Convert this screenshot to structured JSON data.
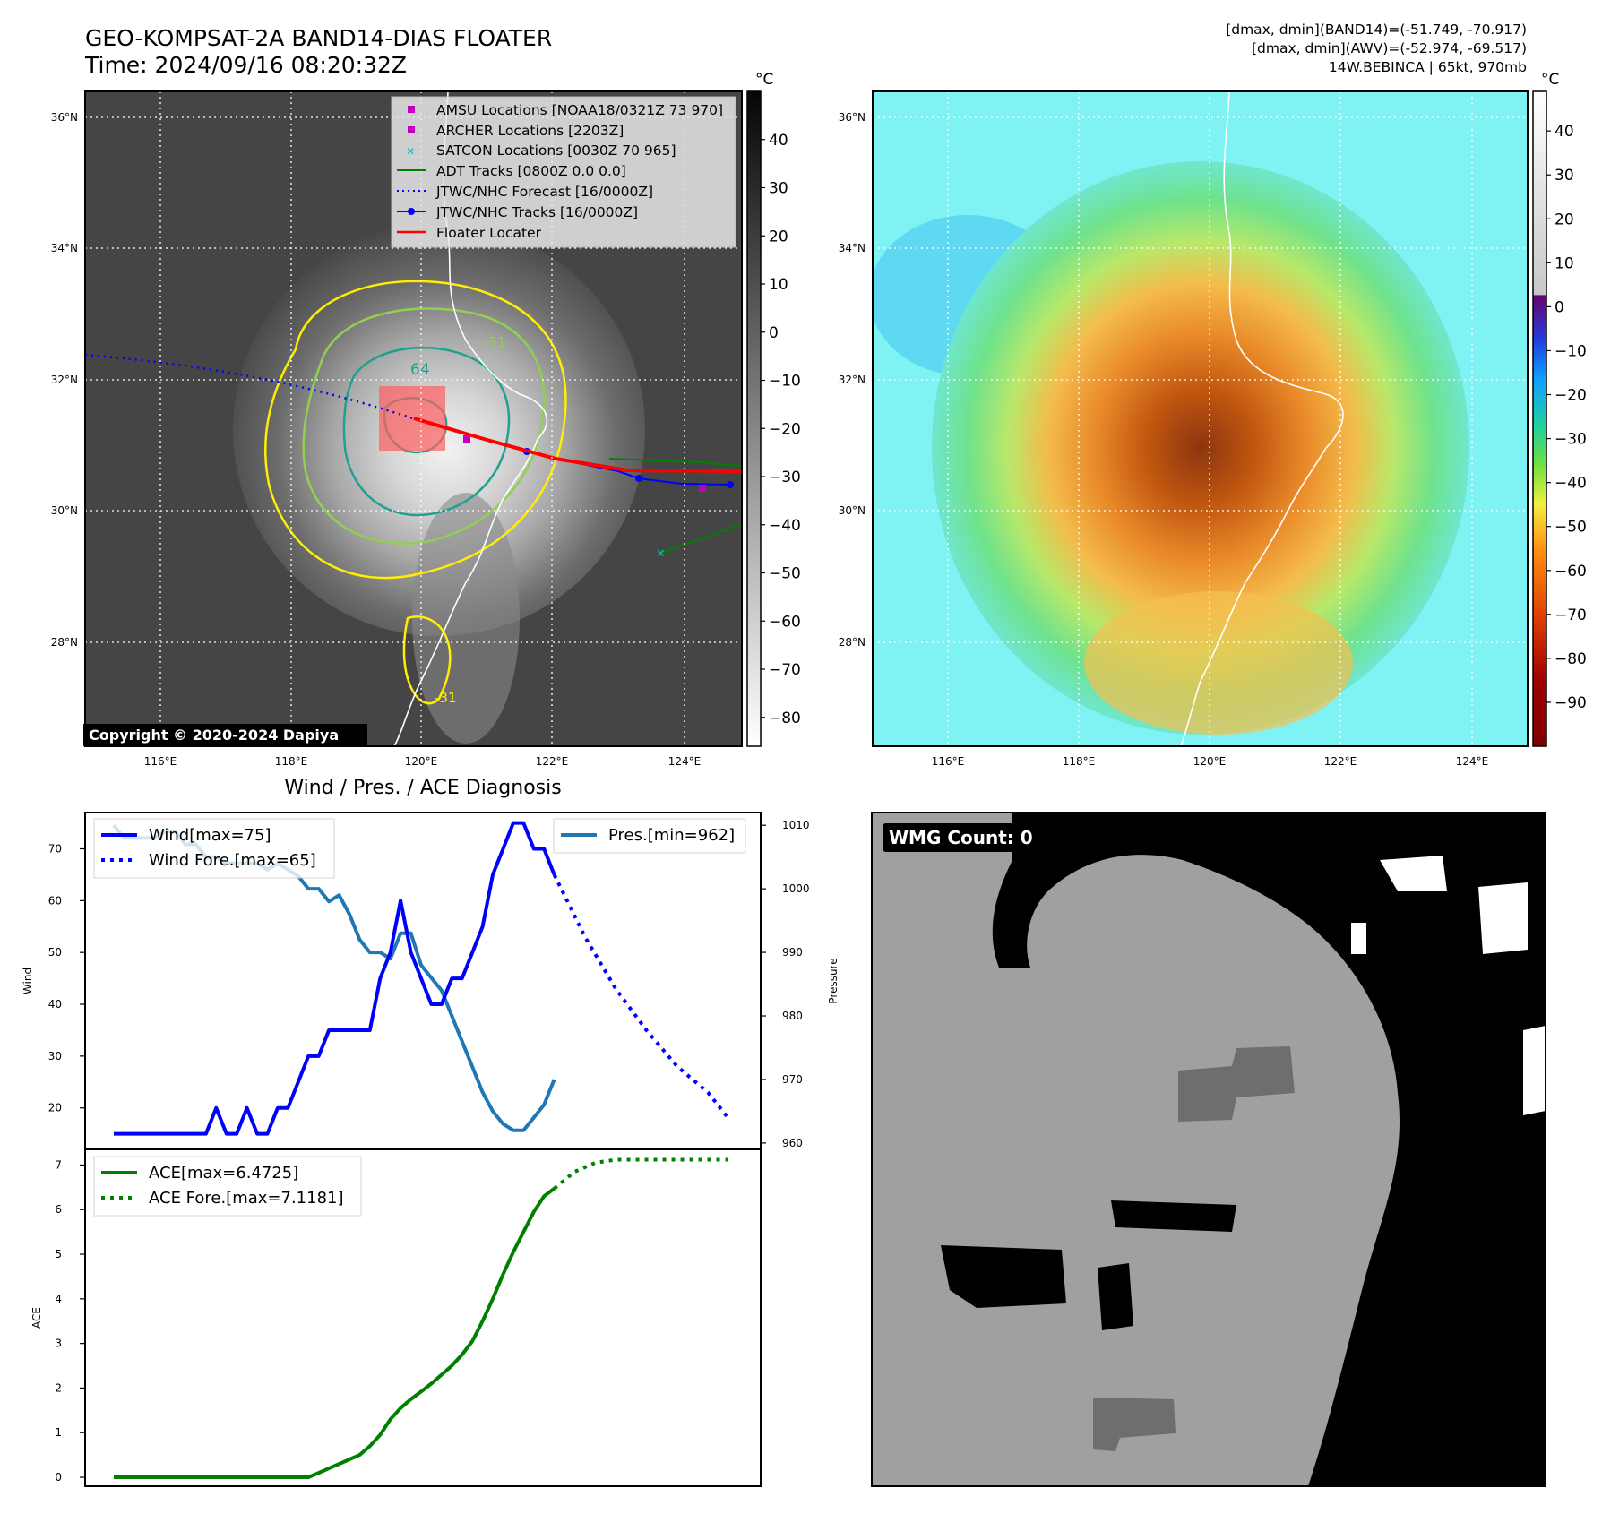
{
  "figure": {
    "title_line1": "GEO-KOMPSAT-2A BAND14-DIAS FLOATER",
    "title_line2": "Time: 2024/09/16 08:20:32Z",
    "info_line1": "[dmax, dmin](BAND14)=(-51.749, -70.917)",
    "info_line2": "[dmax, dmin](AWV)=(-52.974, -69.517)",
    "info_line3": "14W.BEBINCA | 65kt, 970mb",
    "copyright": "Copyright © 2020-2024 Dapiya",
    "unit": "°C"
  },
  "map": {
    "lon_ticks": [
      "116°E",
      "118°E",
      "120°E",
      "122°E",
      "124°E"
    ],
    "lat_ticks": [
      "36°N",
      "34°N",
      "32°N",
      "30°N",
      "28°N"
    ],
    "contour_labels": [
      "-31",
      "64",
      "-31"
    ],
    "legend": [
      {
        "label": "AMSU Locations [NOAA18/0321Z 73 970]",
        "color": "#c000c0",
        "kind": "square"
      },
      {
        "label": "ARCHER Locations [2203Z]",
        "color": "#c000c0",
        "kind": "square"
      },
      {
        "label": "SATCON Locations [0030Z 70 965]",
        "color": "#00c0c0",
        "kind": "cross"
      },
      {
        "label": "ADT Tracks [0800Z 0.0 0.0]",
        "color": "#008000",
        "kind": "line"
      },
      {
        "label": "JTWC/NHC Forecast [16/0000Z]",
        "color": "#0000ff",
        "kind": "dotted"
      },
      {
        "label": "JTWC/NHC Tracks [16/0000Z]",
        "color": "#0000ff",
        "kind": "line-dot"
      },
      {
        "label": "Floater Locater",
        "color": "#ff0000",
        "kind": "line"
      }
    ]
  },
  "colorbar_gray": {
    "ticks": [
      "40",
      "30",
      "20",
      "10",
      "0",
      "−10",
      "−20",
      "−30",
      "−40",
      "−50",
      "−60",
      "−70",
      "−80"
    ]
  },
  "colorbar_color": {
    "ticks": [
      "40",
      "30",
      "20",
      "10",
      "0",
      "−10",
      "−20",
      "−30",
      "−40",
      "−50",
      "−60",
      "−70",
      "−80",
      "−90"
    ]
  },
  "wmg": {
    "label": "WMG Count: 0"
  },
  "colors": {
    "wind": "#0000ff",
    "pressure": "#1f77b4",
    "ace": "#008000",
    "contour_yellow": "#ffee00",
    "contour_green": "#90d050",
    "contour_teal": "#20a090",
    "floater": "#ff0000"
  },
  "chart_data": [
    {
      "type": "line",
      "title": "Wind / Pres. / ACE Diagnosis",
      "ylabel": "Wind",
      "ylabel_right": "Pressure",
      "ylim": [
        12,
        77
      ],
      "ylim_right": [
        959,
        1012
      ],
      "yticks": [
        "70",
        "60",
        "50",
        "40",
        "30",
        "20"
      ],
      "yticks_right": [
        "1010",
        "1000",
        "990",
        "980",
        "970",
        "960"
      ],
      "x_index_max": 60,
      "series": [
        {
          "name": "Wind[max=75]",
          "x": [
            0,
            1,
            2,
            3,
            4,
            5,
            6,
            7,
            8,
            9,
            10,
            11,
            12,
            13,
            14,
            15,
            16,
            17,
            18,
            19,
            20,
            21,
            22,
            23,
            24,
            25,
            26,
            27,
            28,
            29,
            30,
            31,
            32,
            33,
            34,
            35,
            36,
            37,
            38,
            39,
            40,
            41,
            42,
            43,
            44,
            45,
            46,
            47,
            48,
            49,
            50,
            51,
            52,
            53,
            54,
            55,
            56,
            57,
            58,
            59,
            60
          ],
          "values": [
            15,
            15,
            15,
            15,
            15,
            15,
            15,
            15,
            15,
            15,
            20,
            15,
            15,
            20,
            15,
            15,
            20,
            20,
            25,
            30,
            30,
            35,
            35,
            35,
            35,
            35,
            45,
            50,
            60,
            50,
            45,
            40,
            40,
            45,
            45,
            50,
            55,
            65,
            70,
            75,
            75,
            70,
            70,
            65,
            null,
            null,
            null,
            null,
            null,
            null,
            null,
            null,
            null,
            null,
            null,
            null,
            null,
            null,
            null,
            null,
            null
          ]
        },
        {
          "name": "Wind Fore.[max=65]",
          "x": [
            43,
            46,
            49,
            52,
            55,
            58,
            60
          ],
          "values": [
            65,
            53,
            43,
            35,
            28,
            23,
            18
          ]
        },
        {
          "name": "Pres.[min=962]",
          "axis": "right",
          "x": [
            0,
            1,
            2,
            3,
            4,
            5,
            6,
            7,
            8,
            9,
            10,
            11,
            12,
            13,
            14,
            15,
            16,
            17,
            18,
            19,
            20,
            21,
            22,
            23,
            24,
            25,
            26,
            27,
            28,
            29,
            30,
            31,
            32,
            33,
            34,
            35,
            36,
            37,
            38,
            39,
            40,
            41,
            42,
            43
          ],
          "values": [
            1010,
            1008,
            1008,
            1008,
            1008,
            1009,
            1009,
            1007,
            1007,
            1005,
            1005,
            1004,
            1004,
            1004,
            1004,
            1003,
            1004,
            1003,
            1002,
            1000,
            1000,
            998,
            999,
            996,
            992,
            990,
            990,
            989,
            993,
            993,
            988,
            986,
            984,
            980,
            976,
            972,
            968,
            965,
            963,
            962,
            962,
            964,
            966,
            970
          ]
        }
      ]
    },
    {
      "type": "line",
      "ylabel": "ACE",
      "ylim": [
        -0.2,
        7.35
      ],
      "yticks": [
        "7",
        "6",
        "5",
        "4",
        "3",
        "2",
        "1",
        "0"
      ],
      "x_index_max": 60,
      "series": [
        {
          "name": "ACE[max=6.4725]",
          "x": [
            0,
            19,
            20,
            21,
            22,
            23,
            24,
            25,
            26,
            27,
            28,
            29,
            30,
            31,
            32,
            33,
            34,
            35,
            36,
            37,
            38,
            39,
            40,
            41,
            42,
            43
          ],
          "values": [
            0,
            0,
            0.1,
            0.2,
            0.3,
            0.4,
            0.5,
            0.7,
            0.95,
            1.3,
            1.55,
            1.75,
            1.92,
            2.1,
            2.3,
            2.5,
            2.75,
            3.05,
            3.5,
            4.0,
            4.55,
            5.05,
            5.5,
            5.95,
            6.3,
            6.4725
          ]
        },
        {
          "name": "ACE Fore.[max=7.1181]",
          "x": [
            43,
            45,
            47,
            49,
            51,
            53,
            55,
            58,
            60
          ],
          "values": [
            6.4725,
            6.85,
            7.05,
            7.1181,
            7.1181,
            7.1181,
            7.1181,
            7.1181,
            7.1181
          ]
        }
      ]
    }
  ]
}
